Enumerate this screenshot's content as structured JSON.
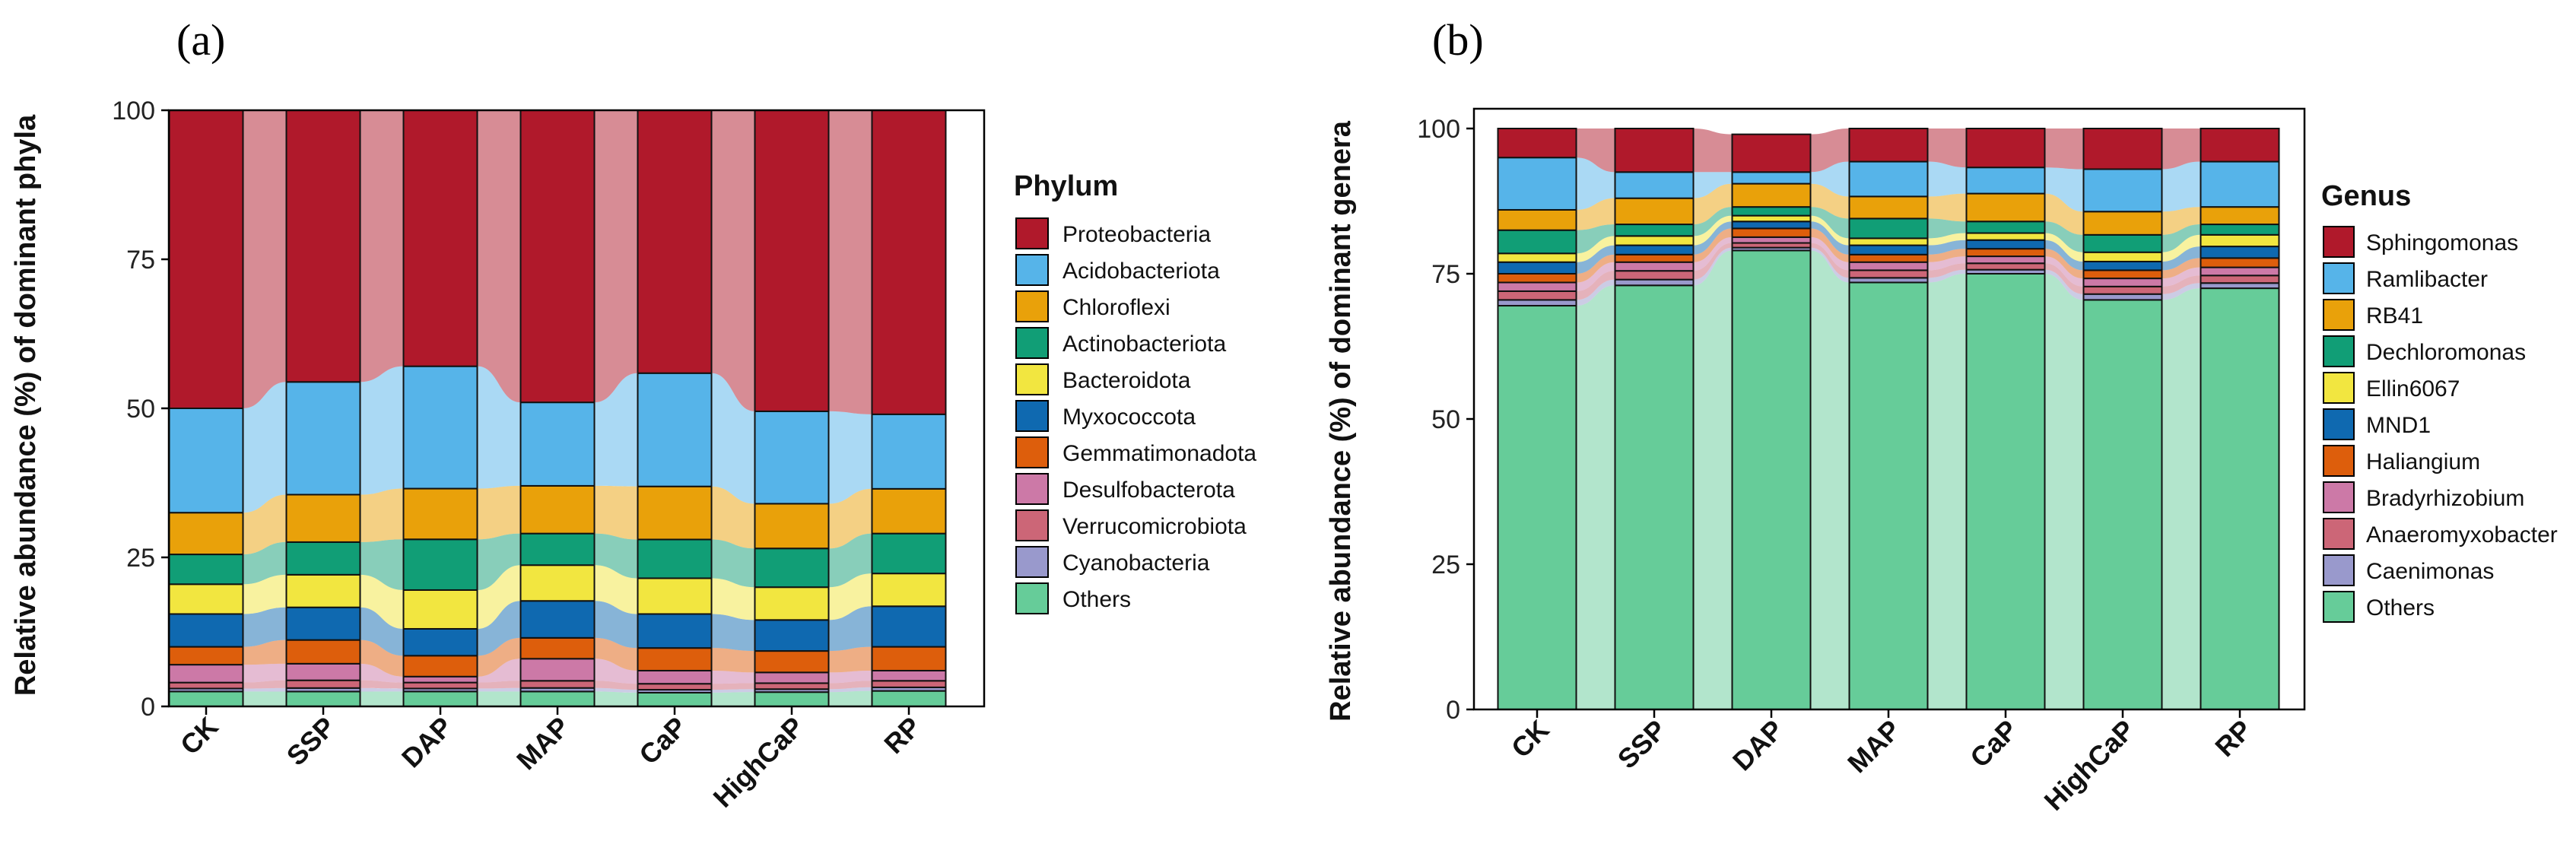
{
  "chart_data": [
    {
      "panel_label": "(a)",
      "type": "bar",
      "stacked": true,
      "percent_axis": true,
      "ylabel": "Relative abundance (%) of dominant phyla",
      "xlabel": "",
      "ylim": [
        0,
        100
      ],
      "yticks": [
        "0",
        "25",
        "50",
        "75",
        "100"
      ],
      "categories": [
        "CK",
        "SSP",
        "DAP",
        "MAP",
        "CaP",
        "HighCaP",
        "RP"
      ],
      "legend_title": "Phylum",
      "legend_position": "right",
      "series": [
        {
          "name": "Others",
          "color": "#66CC99",
          "values": [
            2.5,
            2.5,
            2.5,
            2.5,
            2.3,
            2.4,
            2.6
          ]
        },
        {
          "name": "Cyanobacteria",
          "color": "#9999CC",
          "values": [
            0.5,
            0.6,
            0.5,
            0.6,
            0.5,
            0.5,
            0.6
          ]
        },
        {
          "name": "Verrucomicrobiota",
          "color": "#CC6677",
          "values": [
            1.0,
            1.3,
            1.0,
            1.2,
            1.0,
            1.0,
            1.1
          ]
        },
        {
          "name": "Desulfobacterota",
          "color": "#CC79A7",
          "values": [
            3.0,
            2.8,
            1.0,
            3.7,
            2.2,
            1.8,
            1.7
          ]
        },
        {
          "name": "Gemmatimonadota",
          "color": "#DD5E0C",
          "values": [
            3.0,
            4.0,
            3.5,
            3.5,
            3.8,
            3.6,
            4.0
          ]
        },
        {
          "name": "Myxococcota",
          "color": "#0F69B0",
          "values": [
            5.5,
            5.5,
            4.5,
            6.2,
            5.7,
            5.2,
            6.8
          ]
        },
        {
          "name": "Bacteroidota",
          "color": "#F2E640",
          "values": [
            5.0,
            5.5,
            6.5,
            6.0,
            6.0,
            5.5,
            5.5
          ]
        },
        {
          "name": "Actinobacteriota",
          "color": "#119E76",
          "values": [
            5.0,
            5.5,
            8.5,
            5.3,
            6.5,
            6.5,
            6.7
          ]
        },
        {
          "name": "Chloroflexi",
          "color": "#E9A10A",
          "values": [
            7.0,
            8.0,
            8.5,
            8.0,
            8.9,
            7.5,
            7.5
          ]
        },
        {
          "name": "Acidobacteriota",
          "color": "#56B4E9",
          "values": [
            17.5,
            19.0,
            20.5,
            14.0,
            19.0,
            15.5,
            12.5
          ]
        },
        {
          "name": "Proteobacteria",
          "color": "#B0192B",
          "values": [
            50.0,
            45.8,
            42.9,
            49.0,
            44.1,
            50.5,
            51.0
          ]
        }
      ]
    },
    {
      "panel_label": "(b)",
      "type": "bar",
      "stacked": true,
      "percent_axis": false,
      "ylabel": "Relative abundance (%) of dominant genera",
      "xlabel": "",
      "ylim": [
        0,
        100
      ],
      "yticks": [
        "0",
        "25",
        "50",
        "75",
        "100"
      ],
      "categories": [
        "CK",
        "SSP",
        "DAP",
        "MAP",
        "CaP",
        "HighCaP",
        "RP"
      ],
      "legend_title": "Genus",
      "legend_position": "right",
      "series": [
        {
          "name": "Others",
          "color": "#66CC99",
          "values": [
            69.5,
            73.0,
            79.0,
            73.5,
            75.0,
            70.5,
            72.5
          ]
        },
        {
          "name": "Caenimonas",
          "color": "#9999CC",
          "values": [
            1.0,
            1.0,
            0.5,
            0.8,
            0.7,
            1.0,
            0.9
          ]
        },
        {
          "name": "Anaeromyxobacter",
          "color": "#CC6677",
          "values": [
            1.5,
            1.5,
            0.8,
            1.3,
            1.1,
            1.3,
            1.3
          ]
        },
        {
          "name": "Bradyrhizobium",
          "color": "#CC79A7",
          "values": [
            1.5,
            1.5,
            1.0,
            1.4,
            1.2,
            1.4,
            1.4
          ]
        },
        {
          "name": "Haliangium",
          "color": "#DD5E0C",
          "values": [
            1.5,
            1.3,
            1.5,
            1.3,
            1.3,
            1.4,
            1.6
          ]
        },
        {
          "name": "MND1",
          "color": "#0F69B0",
          "values": [
            2.0,
            1.6,
            1.2,
            1.6,
            1.5,
            1.5,
            2.0
          ]
        },
        {
          "name": "Ellin6067",
          "color": "#F2E640",
          "values": [
            1.5,
            1.6,
            1.0,
            1.2,
            1.2,
            1.6,
            2.0
          ]
        },
        {
          "name": "Dechloromonas",
          "color": "#119E76",
          "values": [
            4.0,
            2.0,
            1.5,
            3.4,
            2.0,
            3.0,
            1.8
          ]
        },
        {
          "name": "RB41",
          "color": "#E9A10A",
          "values": [
            3.5,
            4.5,
            4.0,
            3.8,
            4.8,
            4.0,
            3.0
          ]
        },
        {
          "name": "Ramlibacter",
          "color": "#56B4E9",
          "values": [
            9.0,
            4.5,
            2.0,
            6.0,
            4.5,
            7.3,
            7.8
          ]
        },
        {
          "name": "Sphingomonas",
          "color": "#B0192B",
          "values": [
            5.0,
            7.5,
            6.5,
            5.7,
            6.7,
            7.0,
            5.7
          ]
        }
      ]
    }
  ]
}
